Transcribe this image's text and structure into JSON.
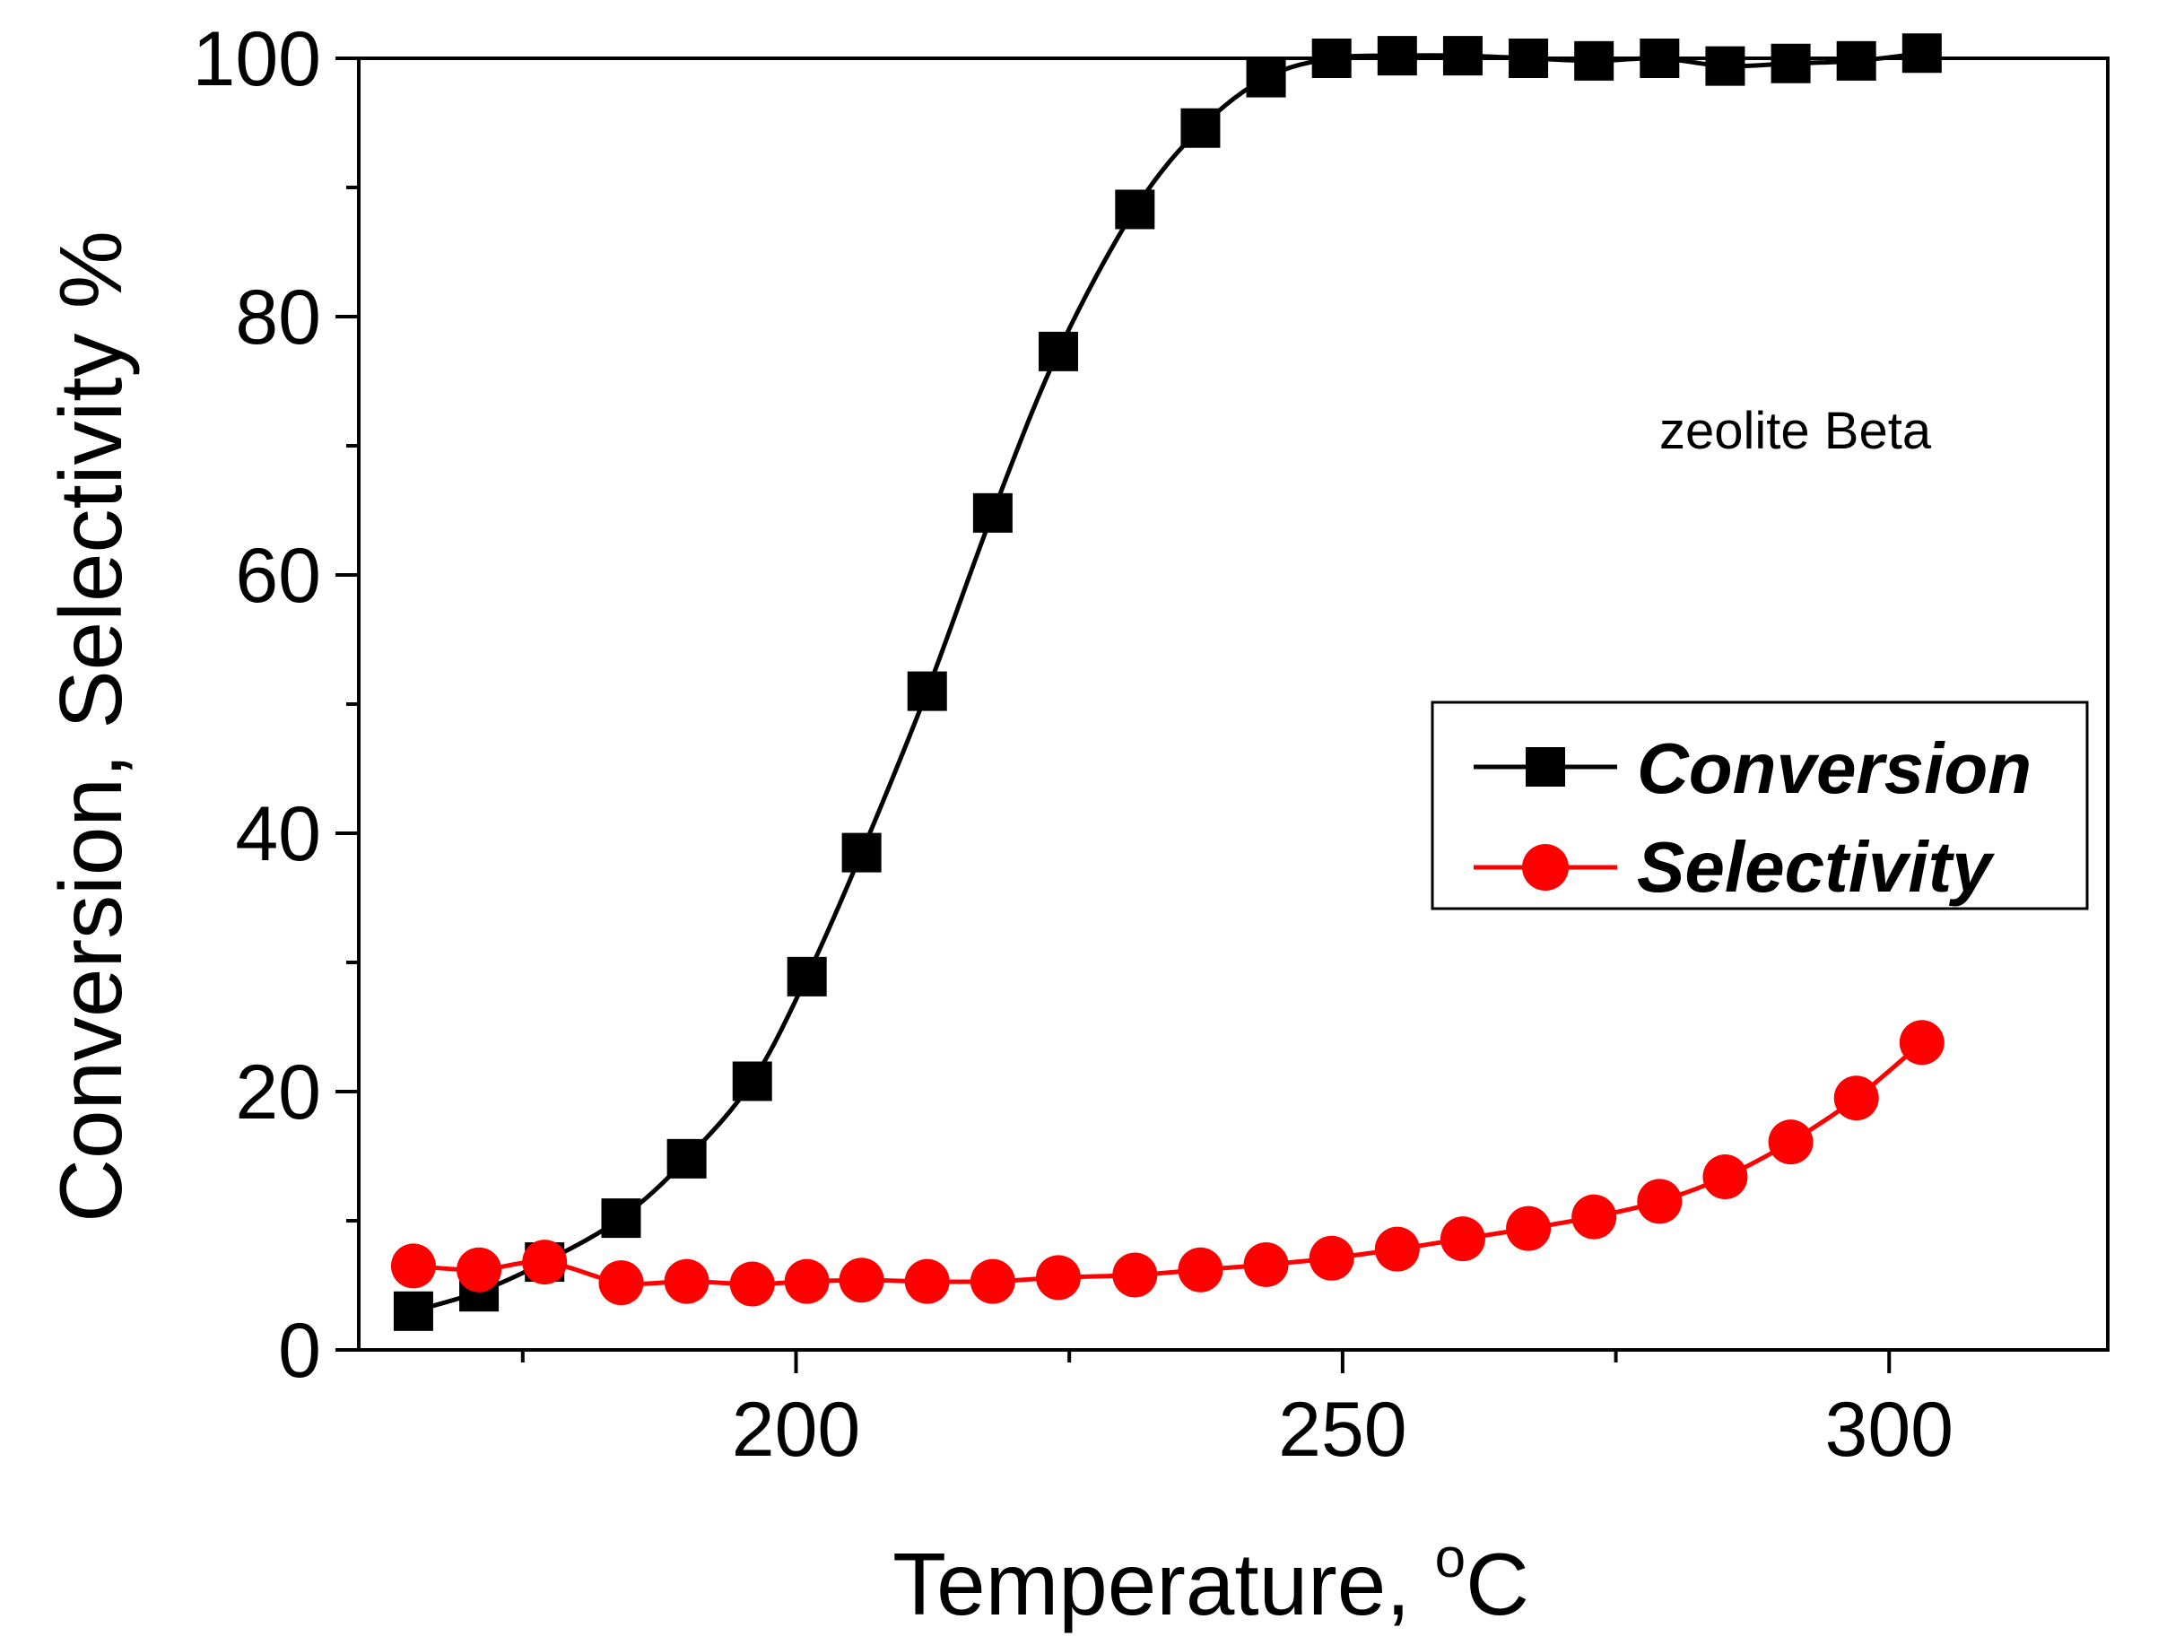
{
  "chart_data": {
    "type": "line",
    "title": "",
    "xlabel": "Temperature, ",
    "xlabel_super": "o",
    "xlabel_unit": "C",
    "ylabel": "Conversion, Selectivity %",
    "xlim": [
      160,
      320
    ],
    "ylim": [
      0,
      100
    ],
    "x_ticks": [
      200,
      250,
      300
    ],
    "x_tick_labels": [
      "200",
      "250",
      "300"
    ],
    "y_ticks": [
      0,
      20,
      40,
      60,
      80,
      100
    ],
    "y_tick_labels": [
      "0",
      "20",
      "40",
      "60",
      "80",
      "100"
    ],
    "annotation": "zeolite Beta",
    "legend_position": "center-right",
    "series": [
      {
        "name": "Conversion",
        "color": "#000000",
        "marker": "square",
        "x": [
          165,
          171,
          177,
          184,
          190,
          196,
          201,
          206,
          212,
          218,
          224,
          231,
          237,
          243,
          249,
          255,
          261,
          267,
          273,
          279,
          285,
          291,
          297,
          303
        ],
        "values": [
          3.0,
          4.5,
          6.8,
          10.2,
          14.8,
          20.8,
          28.9,
          38.5,
          51.0,
          64.8,
          77.3,
          88.3,
          94.6,
          98.5,
          100.0,
          100.2,
          100.2,
          100.0,
          99.8,
          100.0,
          99.4,
          99.6,
          99.8,
          100.4
        ]
      },
      {
        "name": "Selectivity",
        "color": "#ff0000",
        "marker": "circle",
        "x": [
          165,
          171,
          177,
          184,
          190,
          196,
          201,
          206,
          212,
          218,
          224,
          231,
          237,
          243,
          249,
          255,
          261,
          267,
          273,
          279,
          285,
          291,
          297,
          303
        ],
        "values": [
          6.5,
          6.2,
          6.8,
          5.2,
          5.3,
          5.1,
          5.3,
          5.4,
          5.3,
          5.3,
          5.6,
          5.8,
          6.2,
          6.6,
          7.1,
          7.8,
          8.6,
          9.4,
          10.3,
          11.5,
          13.4,
          16.1,
          19.5,
          23.8
        ]
      }
    ]
  }
}
